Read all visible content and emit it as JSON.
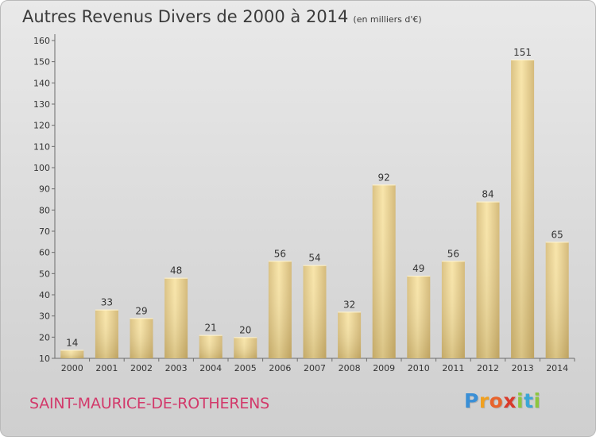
{
  "title": "Autres Revenus Divers de 2000 à 2014",
  "title_unit": "(en milliers d'€)",
  "commune": "SAINT-MAURICE-DE-ROTHERENS",
  "logo": {
    "letters": [
      {
        "ch": "P",
        "color": "#3a8fd6"
      },
      {
        "ch": "r",
        "color": "#f0a020"
      },
      {
        "ch": "o",
        "color": "#e8632c"
      },
      {
        "ch": "x",
        "color": "#d93a2b"
      },
      {
        "ch": "i",
        "color": "#8ec63f"
      },
      {
        "ch": "t",
        "color": "#3aa6d6"
      },
      {
        "ch": "i",
        "color": "#8ec63f"
      }
    ]
  },
  "colors": {
    "bar_light": "#f7e2a2",
    "bar_dark": "#c9ad68",
    "axis": "#6b6b6b",
    "commune": "#d23a6b"
  },
  "chart_data": {
    "type": "bar",
    "categories": [
      "2000",
      "2001",
      "2002",
      "2003",
      "2004",
      "2005",
      "2006",
      "2007",
      "2008",
      "2009",
      "2010",
      "2011",
      "2012",
      "2013",
      "2014"
    ],
    "values": [
      14,
      33,
      29,
      48,
      21,
      20,
      56,
      54,
      32,
      92,
      49,
      56,
      84,
      151,
      65
    ],
    "ylim": [
      10,
      160
    ],
    "yticks": [
      10,
      20,
      30,
      40,
      50,
      60,
      70,
      80,
      90,
      100,
      110,
      120,
      130,
      140,
      150,
      160
    ],
    "grid": false,
    "title": "Autres Revenus Divers de 2000 à 2014",
    "xlabel": "",
    "ylabel": ""
  }
}
